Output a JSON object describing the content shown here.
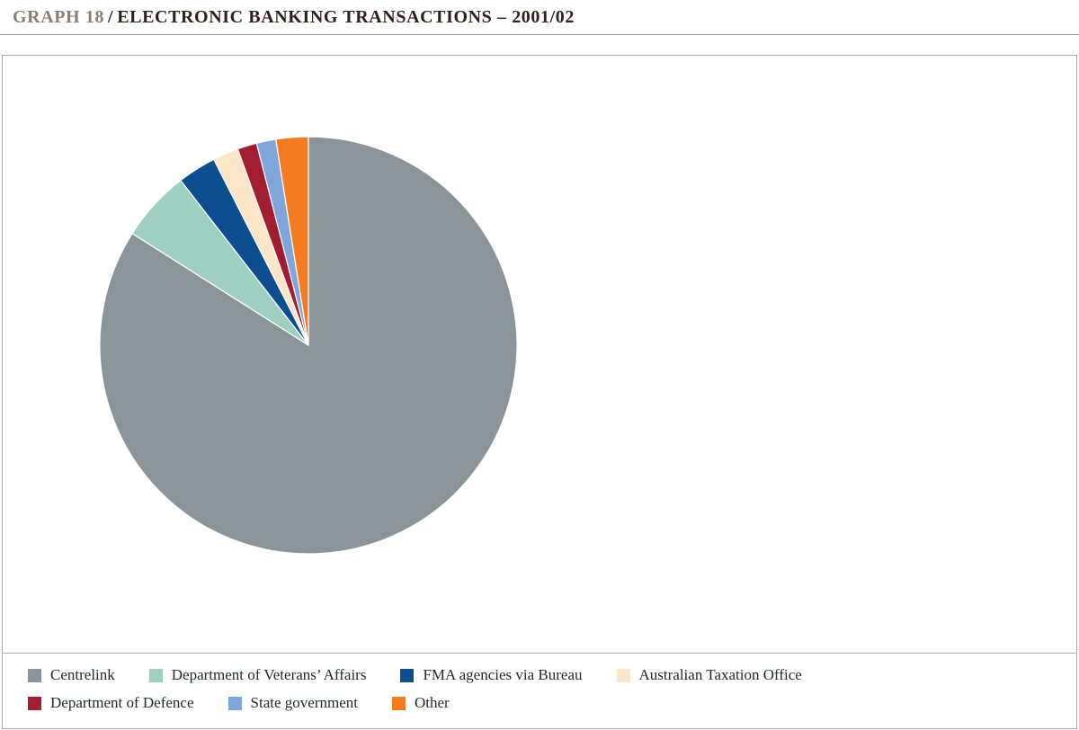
{
  "page": {
    "title_prefix": "GRAPH 18",
    "title_separator": "/",
    "title_main": "ELECTRONIC BANKING TRANSACTIONS – 2001/02"
  },
  "colors": {
    "title_prefix": "#8d7e6f",
    "title_main": "#30211a",
    "panel_border": "#adadad",
    "legend_text": "#1f2732"
  },
  "chart_data": {
    "type": "pie",
    "title": "Electronic banking transactions – 2001/02",
    "direction": "clockwise",
    "start_angle_deg": 0,
    "legend_position": "bottom",
    "values_are_estimated_percent": true,
    "series": [
      {
        "label": "Centrelink",
        "value": 84,
        "color": "#8a959b"
      },
      {
        "label": "Department of Veterans’ Affairs",
        "value": 5.5,
        "color": "#9fcfc0"
      },
      {
        "label": "FMA agencies via Bureau",
        "value": 3,
        "color": "#0d4e90"
      },
      {
        "label": "Australian Taxation Office",
        "value": 2,
        "color": "#fbe6c8"
      },
      {
        "label": "Department of Defence",
        "value": 1.5,
        "color": "#a21c32"
      },
      {
        "label": "State government",
        "value": 1.5,
        "color": "#7ea6db"
      },
      {
        "label": "Other",
        "value": 2.5,
        "color": "#f47b20"
      }
    ],
    "legend_rows": [
      [
        0,
        1,
        2,
        3
      ],
      [
        4,
        5,
        6
      ]
    ]
  }
}
